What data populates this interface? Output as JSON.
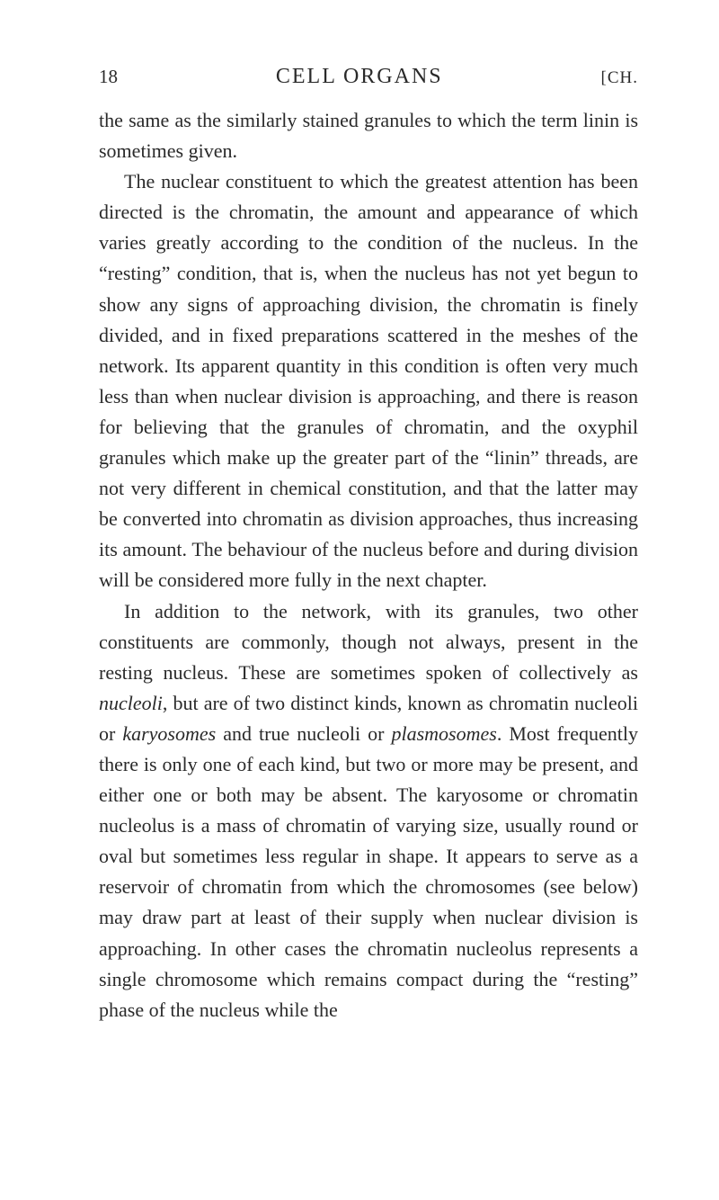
{
  "header": {
    "pageNumber": "18",
    "title": "CELL ORGANS",
    "chapterMark": "[CH."
  },
  "paragraphs": {
    "p1": {
      "text": "the same as the similarly stained granules to which the term linin is sometimes given."
    },
    "p2": {
      "prefix": "The nuclear constituent to which the greatest attention has been directed is the chromatin, the amount and appear­ance of which varies greatly according to the condition of the nucleus. In the “resting” condition, that is, when the nucleus has not yet begun to show any signs of approaching division, the chromatin is finely divided, and in fixed pre­parations scattered in the meshes of the network. Its apparent quantity in this condition is often very much less than when nuclear division is approaching, and there is reason for believing that the granules of chromatin, and the oxyphil granules which make up the greater part of the “linin” threads, are not very different in chemical constitu­tion, and that the latter may be converted into chromatin as division approaches, thus increasing its amount. The behaviour of the nucleus before and during division will be considered more fully in the next chapter."
    },
    "p3": {
      "s1": "In addition to the network, with its granules, two other constituents are commonly, though not always, present in the resting nucleus. These are sometimes spoken of collec­tively as ",
      "i1": "nucleoli",
      "s2": ", but are of two distinct kinds, known as chromatin nucleoli or ",
      "i2": "karyosomes",
      "s3": " and true nucleoli or ",
      "i3": "plas­mosomes",
      "s4": ". Most frequently there is only one of each kind, but two or more may be present, and either one or both may be absent. The karyosome or chromatin nucleolus is a mass of chromatin of varying size, usually round or oval but sometimes less regular in shape. It appears to serve as a reservoir of chromatin from which the chromosomes (see below) may draw part at least of their supply when nuclear division is approaching. In other cases the chromatin nu­cleolus represents a single chromosome which remains com­pact during the “resting” phase of the nucleus while the"
    }
  }
}
